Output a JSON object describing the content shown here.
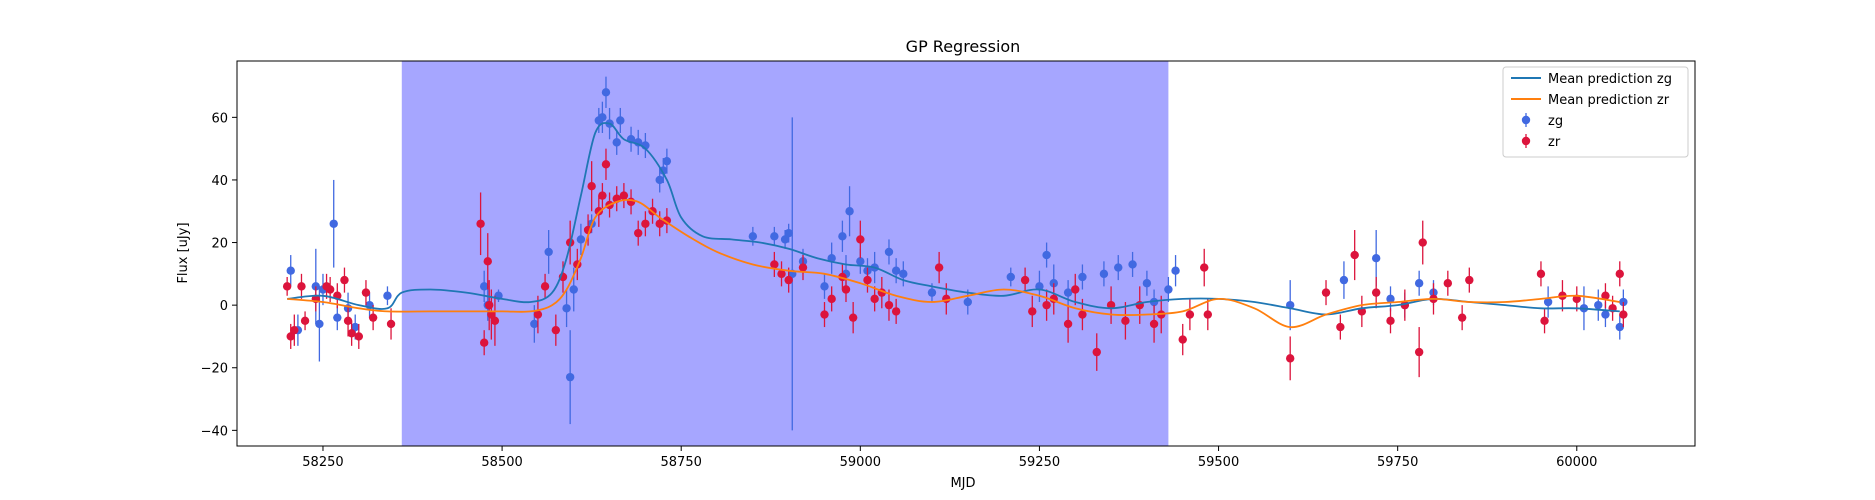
{
  "chart_data": {
    "type": "scatter",
    "title": "GP Regression",
    "xlabel": "MJD",
    "ylabel": "Flux [uJy]",
    "xlim": [
      58130,
      60165
    ],
    "ylim": [
      -45,
      78
    ],
    "xticks": [
      58250,
      58500,
      58750,
      59000,
      59250,
      59500,
      59750,
      60000
    ],
    "yticks": [
      -40,
      -20,
      0,
      20,
      40,
      60
    ],
    "shaded_region": {
      "x_start": 58360,
      "x_end": 59430,
      "color": "#a6a6ff"
    },
    "legend_position": "upper right",
    "colors": {
      "zg_line": "#1f77b4",
      "zr_line": "#ff7f0e",
      "zg_points": "#4169e1",
      "zr_points": "#dc143c"
    },
    "legend": [
      {
        "label": "Mean prediction zg",
        "kind": "line",
        "color": "#1f77b4"
      },
      {
        "label": "Mean prediction zr",
        "kind": "line",
        "color": "#ff7f0e"
      },
      {
        "label": "zg",
        "kind": "errorbar",
        "color": "#4169e1"
      },
      {
        "label": "zr",
        "kind": "errorbar",
        "color": "#dc143c"
      }
    ],
    "lines": [
      {
        "name": "Mean prediction zg",
        "x": [
          58200,
          58250,
          58300,
          58340,
          58360,
          58400,
          58450,
          58500,
          58540,
          58570,
          58590,
          58610,
          58630,
          58650,
          58670,
          58700,
          58730,
          58750,
          58780,
          58820,
          58860,
          58900,
          58940,
          58980,
          59020,
          59060,
          59100,
          59150,
          59200,
          59250,
          59300,
          59350,
          59400,
          59450,
          59500,
          59550,
          59600,
          59650,
          59700,
          59750,
          59800,
          59850,
          59900,
          59950,
          60000,
          60060
        ],
        "y": [
          2,
          3,
          0,
          -1,
          4,
          5,
          4,
          2,
          1,
          4,
          15,
          35,
          55,
          58,
          53,
          50,
          40,
          28,
          22,
          21,
          20,
          18,
          15,
          13,
          12,
          8,
          6,
          4,
          3,
          5,
          1,
          -1,
          1,
          2,
          2,
          1,
          -1,
          -3,
          -1,
          0,
          2,
          1,
          0,
          -1,
          -1,
          -2
        ]
      },
      {
        "name": "Mean prediction zr",
        "x": [
          58200,
          58250,
          58300,
          58340,
          58400,
          58450,
          58500,
          58540,
          58570,
          58590,
          58610,
          58630,
          58660,
          58690,
          58720,
          58760,
          58800,
          58850,
          58900,
          58950,
          59000,
          59050,
          59100,
          59150,
          59200,
          59250,
          59300,
          59350,
          59400,
          59450,
          59500,
          59550,
          59600,
          59650,
          59700,
          59750,
          59800,
          59850,
          59900,
          59950,
          60000,
          60060
        ],
        "y": [
          2,
          1,
          -1,
          -2,
          -2,
          -2,
          -2,
          -2,
          0,
          5,
          15,
          28,
          33,
          33,
          28,
          22,
          17,
          13,
          11,
          10,
          7,
          3,
          1,
          3,
          5,
          3,
          -1,
          -3,
          -3,
          -2,
          2,
          -1,
          -7,
          -3,
          0,
          1,
          2,
          1,
          1,
          2,
          3,
          1
        ]
      }
    ],
    "series": [
      {
        "name": "zg",
        "points": [
          [
            58205,
            11,
            5
          ],
          [
            58215,
            -8,
            5
          ],
          [
            58240,
            6,
            12
          ],
          [
            58245,
            -6,
            12
          ],
          [
            58250,
            5,
            5
          ],
          [
            58265,
            26,
            14
          ],
          [
            58270,
            -4,
            4
          ],
          [
            58285,
            -1,
            5
          ],
          [
            58295,
            -7,
            4
          ],
          [
            58315,
            0,
            4
          ],
          [
            58340,
            3,
            3
          ],
          [
            58475,
            6,
            5
          ],
          [
            58480,
            0,
            5
          ],
          [
            58495,
            3,
            2
          ],
          [
            58545,
            -6,
            6
          ],
          [
            58565,
            17,
            7
          ],
          [
            58590,
            -1,
            6
          ],
          [
            58595,
            -23,
            15
          ],
          [
            58600,
            5,
            7
          ],
          [
            58610,
            21,
            5
          ],
          [
            58625,
            26,
            3
          ],
          [
            58635,
            59,
            4
          ],
          [
            58640,
            60,
            5
          ],
          [
            58645,
            68,
            5
          ],
          [
            58650,
            58,
            5
          ],
          [
            58660,
            52,
            4
          ],
          [
            58665,
            59,
            4
          ],
          [
            58680,
            53,
            4
          ],
          [
            58690,
            52,
            4
          ],
          [
            58700,
            51,
            4
          ],
          [
            58720,
            40,
            4
          ],
          [
            58725,
            43,
            4
          ],
          [
            58730,
            46,
            4
          ],
          [
            58850,
            22,
            3
          ],
          [
            58880,
            22,
            3
          ],
          [
            58895,
            21,
            3
          ],
          [
            58900,
            23,
            3
          ],
          [
            58905,
            10,
            50
          ],
          [
            58920,
            14,
            4
          ],
          [
            58950,
            6,
            4
          ],
          [
            58960,
            15,
            5
          ],
          [
            58975,
            22,
            5
          ],
          [
            58980,
            10,
            6
          ],
          [
            58985,
            30,
            8
          ],
          [
            59000,
            14,
            4
          ],
          [
            59010,
            11,
            4
          ],
          [
            59020,
            12,
            5
          ],
          [
            59040,
            17,
            4
          ],
          [
            59050,
            11,
            4
          ],
          [
            59060,
            10,
            4
          ],
          [
            59100,
            4,
            3
          ],
          [
            59150,
            1,
            4
          ],
          [
            59210,
            9,
            3
          ],
          [
            59250,
            6,
            5
          ],
          [
            59260,
            16,
            4
          ],
          [
            59270,
            7,
            6
          ],
          [
            59290,
            4,
            4
          ],
          [
            59310,
            9,
            4
          ],
          [
            59340,
            10,
            4
          ],
          [
            59360,
            12,
            4
          ],
          [
            59380,
            13,
            4
          ],
          [
            59400,
            7,
            4
          ],
          [
            59410,
            1,
            4
          ],
          [
            59430,
            5,
            4
          ],
          [
            59440,
            11,
            5
          ],
          [
            59600,
            0,
            8
          ],
          [
            59675,
            8,
            6
          ],
          [
            59720,
            15,
            9
          ],
          [
            59740,
            2,
            4
          ],
          [
            59760,
            0,
            4
          ],
          [
            59780,
            7,
            4
          ],
          [
            59800,
            4,
            4
          ],
          [
            59960,
            1,
            5
          ],
          [
            60010,
            -1,
            7
          ],
          [
            60030,
            0,
            5
          ],
          [
            60040,
            -3,
            4
          ],
          [
            60060,
            -7,
            4
          ],
          [
            60065,
            1,
            4
          ]
        ]
      },
      {
        "name": "zr",
        "points": [
          [
            58200,
            6,
            3
          ],
          [
            58205,
            -10,
            4
          ],
          [
            58210,
            -8,
            5
          ],
          [
            58220,
            6,
            4
          ],
          [
            58225,
            -5,
            3
          ],
          [
            58240,
            2,
            4
          ],
          [
            58255,
            6,
            4
          ],
          [
            58260,
            5,
            4
          ],
          [
            58270,
            3,
            4
          ],
          [
            58280,
            8,
            4
          ],
          [
            58285,
            -5,
            5
          ],
          [
            58290,
            -9,
            4
          ],
          [
            58300,
            -10,
            4
          ],
          [
            58310,
            4,
            4
          ],
          [
            58320,
            -4,
            4
          ],
          [
            58345,
            -6,
            5
          ],
          [
            58470,
            26,
            10
          ],
          [
            58475,
            -12,
            4
          ],
          [
            58480,
            14,
            9
          ],
          [
            58482,
            0,
            8
          ],
          [
            58485,
            -3,
            8
          ],
          [
            58490,
            -5,
            8
          ],
          [
            58550,
            -3,
            6
          ],
          [
            58560,
            6,
            4
          ],
          [
            58575,
            -8,
            5
          ],
          [
            58585,
            9,
            5
          ],
          [
            58595,
            20,
            7
          ],
          [
            58605,
            13,
            5
          ],
          [
            58620,
            24,
            5
          ],
          [
            58625,
            38,
            8
          ],
          [
            58635,
            30,
            5
          ],
          [
            58640,
            35,
            4
          ],
          [
            58645,
            45,
            5
          ],
          [
            58650,
            32,
            4
          ],
          [
            58660,
            34,
            4
          ],
          [
            58670,
            35,
            4
          ],
          [
            58680,
            33,
            4
          ],
          [
            58690,
            23,
            4
          ],
          [
            58700,
            26,
            4
          ],
          [
            58710,
            30,
            4
          ],
          [
            58720,
            26,
            4
          ],
          [
            58730,
            27,
            4
          ],
          [
            58880,
            13,
            4
          ],
          [
            58890,
            10,
            4
          ],
          [
            58900,
            8,
            4
          ],
          [
            58920,
            12,
            4
          ],
          [
            58950,
            -3,
            4
          ],
          [
            58960,
            2,
            4
          ],
          [
            58975,
            9,
            4
          ],
          [
            58980,
            5,
            4
          ],
          [
            58990,
            -4,
            5
          ],
          [
            59000,
            21,
            6
          ],
          [
            59010,
            8,
            4
          ],
          [
            59020,
            2,
            4
          ],
          [
            59030,
            4,
            5
          ],
          [
            59040,
            0,
            5
          ],
          [
            59050,
            -2,
            4
          ],
          [
            59110,
            12,
            5
          ],
          [
            59120,
            2,
            5
          ],
          [
            59230,
            8,
            4
          ],
          [
            59240,
            -2,
            5
          ],
          [
            59260,
            0,
            5
          ],
          [
            59270,
            2,
            5
          ],
          [
            59290,
            -6,
            6
          ],
          [
            59300,
            5,
            5
          ],
          [
            59310,
            -3,
            5
          ],
          [
            59330,
            -15,
            6
          ],
          [
            59350,
            0,
            6
          ],
          [
            59370,
            -5,
            6
          ],
          [
            59390,
            0,
            6
          ],
          [
            59410,
            -6,
            6
          ],
          [
            59420,
            -3,
            6
          ],
          [
            59450,
            -11,
            5
          ],
          [
            59460,
            -3,
            5
          ],
          [
            59480,
            12,
            6
          ],
          [
            59485,
            -3,
            5
          ],
          [
            59600,
            -17,
            7
          ],
          [
            59650,
            4,
            4
          ],
          [
            59670,
            -7,
            4
          ],
          [
            59690,
            16,
            8
          ],
          [
            59700,
            -2,
            5
          ],
          [
            59720,
            4,
            5
          ],
          [
            59740,
            -5,
            4
          ],
          [
            59760,
            0,
            5
          ],
          [
            59780,
            -15,
            8
          ],
          [
            59785,
            20,
            7
          ],
          [
            59800,
            2,
            5
          ],
          [
            59820,
            7,
            4
          ],
          [
            59840,
            -4,
            4
          ],
          [
            59850,
            8,
            4
          ],
          [
            59950,
            10,
            4
          ],
          [
            59955,
            -5,
            4
          ],
          [
            59980,
            3,
            5
          ],
          [
            60000,
            2,
            4
          ],
          [
            60040,
            3,
            4
          ],
          [
            60050,
            -1,
            4
          ],
          [
            60060,
            10,
            4
          ],
          [
            60065,
            -3,
            4
          ]
        ]
      }
    ]
  }
}
